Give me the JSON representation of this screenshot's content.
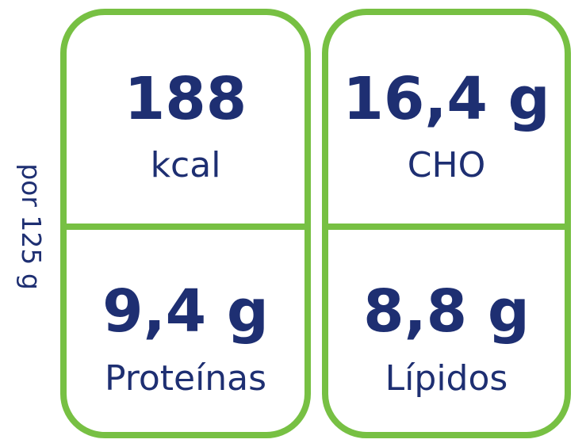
{
  "side_label": "por 125 g",
  "panels": [
    {
      "cells": [
        {
          "value": "188",
          "label": "kcal"
        },
        {
          "value": "9,4 g",
          "label": "Proteínas"
        }
      ]
    },
    {
      "cells": [
        {
          "value": "16,4 g",
          "label": "CHO"
        },
        {
          "value": "8,8 g",
          "label": "Lípidos"
        }
      ]
    }
  ]
}
